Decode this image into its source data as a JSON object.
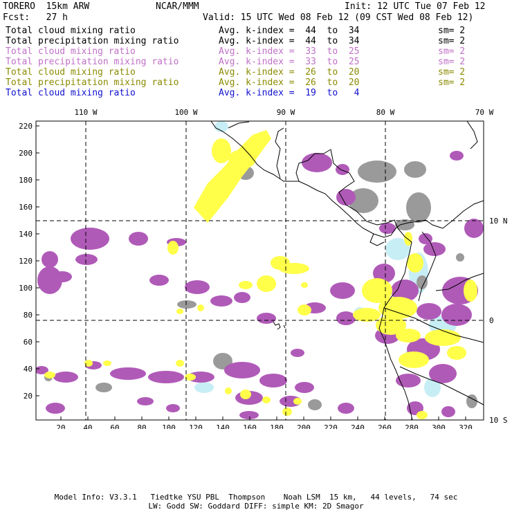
{
  "header": {
    "model": "TORERO  15km ARW",
    "org": "NCAR/MMM",
    "init": "Init: 12 UTC Tue 07 Feb 12",
    "fcst": "Fcst:   27 h",
    "valid": "Valid: 15 UTC Wed 08 Feb 12 (09 CST Wed 08 Feb 12)"
  },
  "legend": [
    {
      "label": "Total cloud mixing ratio",
      "stat": "Avg. k-index =  44  to  34",
      "sm": "sm= 2",
      "color": "#000000"
    },
    {
      "label": "Total precipitation mixing ratio",
      "stat": "Avg. k-index =  44  to  34",
      "sm": "sm= 2",
      "color": "#000000"
    },
    {
      "label": "Total cloud mixing ratio",
      "stat": "Avg. k-index =  33  to  25",
      "sm": "sm= 2",
      "color": "#c070c8"
    },
    {
      "label": "Total precipitation mixing ratio",
      "stat": "Avg. k-index =  33  to  25",
      "sm": "sm= 2",
      "color": "#c070c8"
    },
    {
      "label": "Total cloud mixing ratio",
      "stat": "Avg. k-index =  26  to  20",
      "sm": "sm= 2",
      "color": "#8a8a00"
    },
    {
      "label": "Total precipitation mixing ratio",
      "stat": "Avg. k-index =  26  to  20",
      "sm": "sm= 2",
      "color": "#8a8a00"
    },
    {
      "label": "Total cloud mixing ratio",
      "stat": "Avg. k-index =  19  to   4",
      "sm": "",
      "color": "#1010d0"
    }
  ],
  "map": {
    "top_lon_labels": [
      "110 W",
      "100 W",
      "90 W",
      "80 W",
      "70 W"
    ],
    "right_lat_labels": [
      "10 N",
      "0",
      "10 S"
    ],
    "y_ticks": [
      "220",
      "200",
      "180",
      "160",
      "140",
      "120",
      "100",
      "80",
      "60",
      "40",
      "20"
    ],
    "x_ticks": [
      "20",
      "40",
      "60",
      "80",
      "100",
      "120",
      "140",
      "160",
      "180",
      "200",
      "220",
      "240",
      "260",
      "280",
      "300",
      "320"
    ],
    "colors": {
      "gray": "#9a9a9a",
      "purple": "#b05ab8",
      "yellow": "#ffff4a",
      "cyan": "#c8eef5",
      "coast": "#000000",
      "grid": "#000000"
    }
  },
  "footer": {
    "line1": "Model Info: V3.3.1   Tiedtke YSU PBL  Thompson    Noah LSM  15 km,   44 levels,   74 sec",
    "line2": "LW: Godd SW: Goddard DIFF: simple KM: 2D Smagor"
  }
}
